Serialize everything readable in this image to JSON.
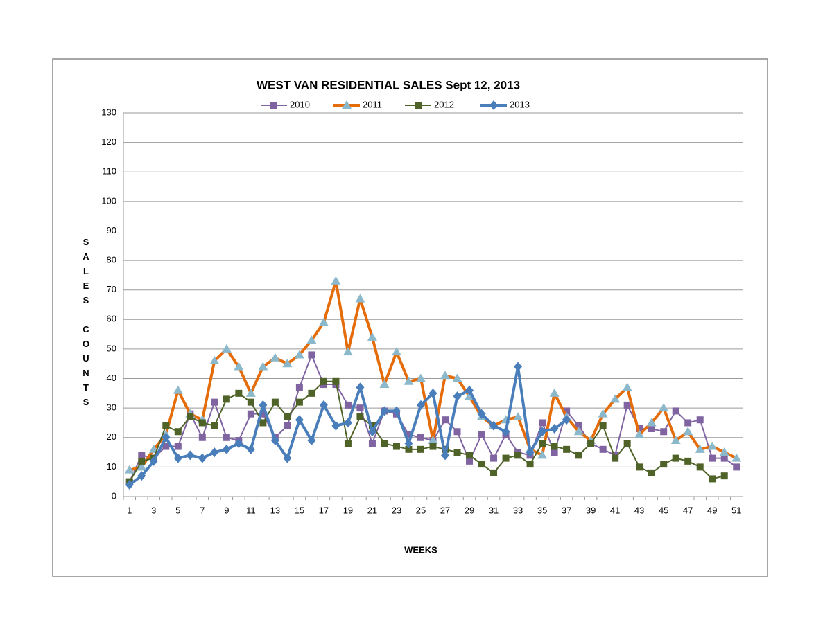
{
  "chart_data": {
    "type": "line",
    "title": "WEST VAN RESIDENTIAL SALES  Sept 12, 2013",
    "x_label": "WEEKS",
    "y_label": "SALES  COUNTS",
    "categories": [
      1,
      null,
      3,
      null,
      5,
      null,
      7,
      null,
      9,
      null,
      11,
      null,
      13,
      null,
      15,
      null,
      17,
      null,
      19,
      null,
      21,
      null,
      23,
      null,
      25,
      null,
      27,
      null,
      29,
      null,
      31,
      null,
      33,
      null,
      35,
      null,
      37,
      null,
      39,
      null,
      41,
      null,
      43,
      null,
      45,
      null,
      47,
      null,
      49,
      null,
      51
    ],
    "ylim": [
      0,
      130
    ],
    "yticks": [
      0,
      10,
      20,
      30,
      40,
      50,
      60,
      70,
      80,
      90,
      100,
      110,
      120,
      130
    ],
    "grid": true,
    "legend": "top",
    "series": [
      {
        "name": "2010",
        "color": "#8064a2",
        "marker": "square",
        "marker_color": "#8064a2",
        "line_width": 2,
        "values": [
          5,
          14,
          13,
          17,
          17,
          28,
          20,
          32,
          20,
          19,
          28,
          28,
          20,
          24,
          37,
          48,
          38,
          38,
          31,
          30,
          18,
          29,
          28,
          21,
          20,
          19,
          26,
          22,
          12,
          21,
          13,
          21,
          15,
          14,
          25,
          15,
          29,
          24,
          18,
          16,
          14,
          31,
          23,
          23,
          22,
          29,
          25,
          26,
          13,
          13,
          10
        ]
      },
      {
        "name": "2011",
        "color": "#e46c0a",
        "marker": "triangle",
        "marker_color": "#8cb8cc",
        "line_width": 4,
        "values": [
          9,
          10,
          16,
          21,
          36,
          28,
          26,
          46,
          50,
          44,
          35,
          44,
          47,
          45,
          48,
          53,
          59,
          73,
          49,
          67,
          54,
          38,
          49,
          39,
          40,
          19,
          41,
          40,
          34,
          27,
          24,
          26,
          27,
          16,
          14,
          35,
          27,
          22,
          19,
          28,
          33,
          37,
          21,
          25,
          30,
          19,
          22,
          16,
          17,
          15,
          13
        ]
      },
      {
        "name": "2012",
        "color": "#4f6228",
        "marker": "square",
        "marker_color": "#4f6228",
        "line_width": 2,
        "values": [
          5,
          12,
          13,
          24,
          22,
          27,
          25,
          24,
          33,
          35,
          32,
          25,
          32,
          27,
          32,
          35,
          39,
          39,
          18,
          27,
          24,
          18,
          17,
          16,
          16,
          17,
          16,
          15,
          14,
          11,
          8,
          13,
          14,
          11,
          18,
          17,
          16,
          14,
          18,
          24,
          13,
          18,
          10,
          8,
          11,
          13,
          12,
          10,
          6,
          7,
          null
        ]
      },
      {
        "name": "2013",
        "color": "#4a7ebb",
        "marker": "diamond",
        "marker_color": "#4a7ebb",
        "line_width": 4,
        "values": [
          4,
          7,
          12,
          20,
          13,
          14,
          13,
          15,
          16,
          18,
          16,
          31,
          19,
          13,
          26,
          19,
          31,
          24,
          25,
          37,
          22,
          29,
          29,
          18,
          31,
          35,
          14,
          34,
          36,
          28,
          24,
          22,
          44,
          15,
          22,
          23,
          26,
          null,
          null,
          null,
          null,
          null,
          null,
          null,
          null,
          null,
          null,
          null,
          null,
          null,
          null
        ]
      }
    ]
  }
}
